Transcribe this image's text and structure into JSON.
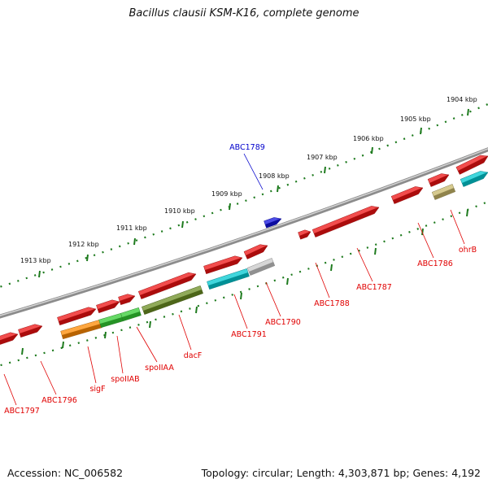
{
  "title": "Bacillus clausii KSM-K16, complete genome",
  "footer": {
    "accession": "Accession: NC_006582",
    "summary": "Topology: circular; Length: 4,303,871 bp; Genes: 4,192"
  },
  "colors": {
    "label": "#e00000",
    "highlight_label": "#0000cc",
    "forward_tick": "#1d7a1d",
    "reverse_tick": "#1d7a1d",
    "backbone": "#8c8c8c"
  },
  "kbp_ticks": [
    "1904 kbp",
    "1905 kbp",
    "1906 kbp",
    "1907 kbp",
    "1908 kbp",
    "1909 kbp",
    "1910 kbp",
    "1911 kbp",
    "1912 kbp",
    "1913 kbp"
  ],
  "genes": [
    {
      "label": "ABC1789",
      "strand": "forward",
      "color": "#1010dd",
      "highlight": true
    },
    {
      "label": "ABC1797",
      "strand": "forward",
      "color": "#ee1111"
    },
    {
      "label": "ABC1796",
      "strand": "forward",
      "color": "#ee1111"
    },
    {
      "label": "sigF",
      "strand": "reverse",
      "color": "#ff8a00"
    },
    {
      "label": "spoIIAB",
      "strand": "reverse",
      "color": "#33cc33"
    },
    {
      "label": "spoIIAA",
      "strand": "reverse",
      "color": "#33cc33"
    },
    {
      "label": "dacF",
      "strand": "reverse",
      "color": "#6b8e23"
    },
    {
      "label": "ABC1791",
      "strand": "reverse",
      "color": "#00c8d0"
    },
    {
      "label": "ABC1790",
      "strand": "reverse",
      "color": "#c8c8c8"
    },
    {
      "label": "ABC1788",
      "strand": "forward",
      "color": "#ee1111"
    },
    {
      "label": "ABC1787",
      "strand": "forward",
      "color": "#ee1111"
    },
    {
      "label": "ABC1786",
      "strand": "forward",
      "color": "#ee1111"
    },
    {
      "label": "ohrB",
      "strand": "reverse",
      "color": "#c8b86a"
    }
  ]
}
